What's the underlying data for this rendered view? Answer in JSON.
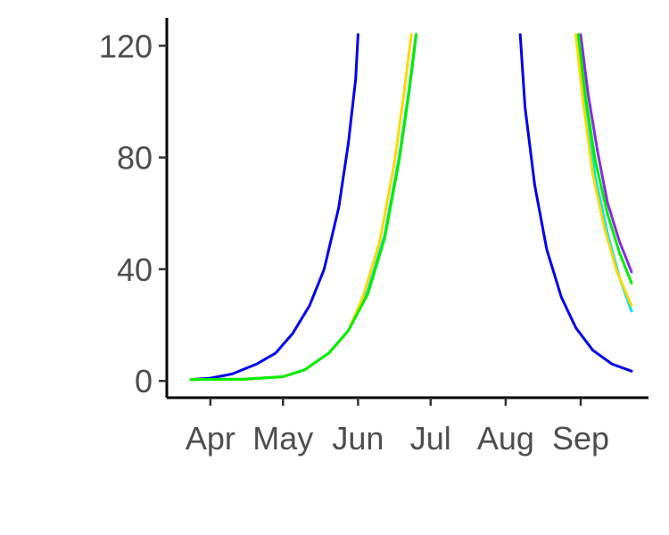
{
  "chart_data": {
    "type": "line",
    "title": "",
    "xlabel": "",
    "ylabel": "",
    "x_axis": {
      "type": "date",
      "range": [
        "2023-03-14",
        "2023-09-29"
      ],
      "ticks": [
        {
          "date": "2023-04-01",
          "label": "Apr"
        },
        {
          "date": "2023-05-01",
          "label": "May"
        },
        {
          "date": "2023-06-01",
          "label": "Jun"
        },
        {
          "date": "2023-07-01",
          "label": "Jul"
        },
        {
          "date": "2023-08-01",
          "label": "Aug"
        },
        {
          "date": "2023-09-01",
          "label": "Sep"
        }
      ]
    },
    "y_axis": {
      "range": [
        -6,
        130
      ],
      "clip_max": 124,
      "ticks": [
        0,
        40,
        80,
        120
      ]
    },
    "grid": false,
    "legend": "none",
    "series": [
      {
        "color": "#0000ee",
        "rising": [
          [
            "2023-03-24",
            0.5
          ],
          [
            "2023-04-01",
            1
          ],
          [
            "2023-04-10",
            2.5
          ],
          [
            "2023-04-20",
            6
          ],
          [
            "2023-04-28",
            10
          ],
          [
            "2023-05-05",
            17
          ],
          [
            "2023-05-12",
            27
          ],
          [
            "2023-05-18",
            40
          ],
          [
            "2023-05-24",
            62
          ],
          [
            "2023-05-28",
            85
          ],
          [
            "2023-05-31",
            108
          ],
          [
            "2023-06-01",
            124
          ]
        ],
        "falling": [
          [
            "2023-08-07",
            124
          ],
          [
            "2023-08-09",
            98
          ],
          [
            "2023-08-13",
            70
          ],
          [
            "2023-08-18",
            47
          ],
          [
            "2023-08-24",
            30
          ],
          [
            "2023-08-30",
            19
          ],
          [
            "2023-09-06",
            11
          ],
          [
            "2023-09-14",
            6
          ],
          [
            "2023-09-22",
            3.5
          ]
        ]
      },
      {
        "color": "#8a2be2",
        "rising": [
          [
            "2023-03-24",
            0.5
          ],
          [
            "2023-04-15",
            0.6
          ],
          [
            "2023-05-01",
            1.5
          ],
          [
            "2023-05-10",
            4
          ],
          [
            "2023-05-20",
            10
          ],
          [
            "2023-05-28",
            18
          ],
          [
            "2023-06-05",
            32
          ],
          [
            "2023-06-12",
            52
          ],
          [
            "2023-06-18",
            80
          ],
          [
            "2023-06-22",
            103
          ],
          [
            "2023-06-25",
            124
          ]
        ],
        "falling": [
          [
            "2023-09-01",
            124
          ],
          [
            "2023-09-04",
            103
          ],
          [
            "2023-09-08",
            82
          ],
          [
            "2023-09-12",
            64
          ],
          [
            "2023-09-17",
            50
          ],
          [
            "2023-09-22",
            39
          ]
        ]
      },
      {
        "color": "#00e5ee",
        "rising": [
          [
            "2023-03-24",
            0.5
          ],
          [
            "2023-04-15",
            0.6
          ],
          [
            "2023-05-01",
            1.5
          ],
          [
            "2023-05-10",
            4
          ],
          [
            "2023-05-20",
            10
          ],
          [
            "2023-05-28",
            18
          ],
          [
            "2023-06-05",
            32
          ],
          [
            "2023-06-12",
            52
          ],
          [
            "2023-06-18",
            80
          ],
          [
            "2023-06-22",
            104
          ],
          [
            "2023-06-25",
            124
          ]
        ],
        "falling": [
          [
            "2023-08-31",
            124
          ],
          [
            "2023-09-03",
            98
          ],
          [
            "2023-09-07",
            73
          ],
          [
            "2023-09-12",
            53
          ],
          [
            "2023-09-17",
            37
          ],
          [
            "2023-09-22",
            25
          ]
        ]
      },
      {
        "color": "#ffd700",
        "rising": [
          [
            "2023-03-24",
            0.5
          ],
          [
            "2023-04-15",
            0.6
          ],
          [
            "2023-05-01",
            1.5
          ],
          [
            "2023-05-10",
            4
          ],
          [
            "2023-05-20",
            10
          ],
          [
            "2023-05-28",
            18
          ],
          [
            "2023-06-03",
            30
          ],
          [
            "2023-06-10",
            50
          ],
          [
            "2023-06-16",
            78
          ],
          [
            "2023-06-20",
            103
          ],
          [
            "2023-06-23",
            124
          ]
        ],
        "falling": [
          [
            "2023-08-30",
            124
          ],
          [
            "2023-09-02",
            100
          ],
          [
            "2023-09-06",
            74
          ],
          [
            "2023-09-11",
            54
          ],
          [
            "2023-09-16",
            39
          ],
          [
            "2023-09-22",
            27
          ]
        ]
      },
      {
        "color": "#00ee00",
        "rising": [
          [
            "2023-03-24",
            0.5
          ],
          [
            "2023-04-15",
            0.6
          ],
          [
            "2023-05-01",
            1.5
          ],
          [
            "2023-05-10",
            4
          ],
          [
            "2023-05-20",
            10
          ],
          [
            "2023-05-28",
            18
          ],
          [
            "2023-06-05",
            31
          ],
          [
            "2023-06-12",
            51
          ],
          [
            "2023-06-18",
            79
          ],
          [
            "2023-06-22",
            103
          ],
          [
            "2023-06-25",
            124
          ]
        ],
        "falling": [
          [
            "2023-08-31",
            124
          ],
          [
            "2023-09-03",
            102
          ],
          [
            "2023-09-07",
            79
          ],
          [
            "2023-09-12",
            60
          ],
          [
            "2023-09-17",
            46
          ],
          [
            "2023-09-22",
            35
          ]
        ]
      }
    ]
  }
}
